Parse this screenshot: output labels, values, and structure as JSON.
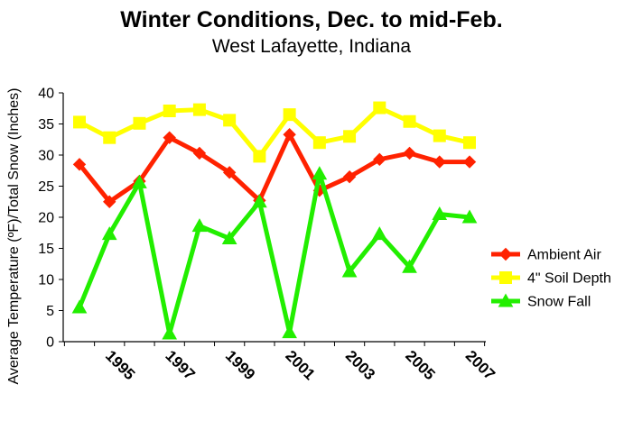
{
  "chart_data": {
    "type": "line",
    "title": "Winter Conditions, Dec. to mid-Feb.",
    "subtitle": "West Lafayette, Indiana",
    "ylabel": "Average Temperature (ºF)/Total Snow (Inches)",
    "xlabel": "",
    "ylim": [
      0,
      40
    ],
    "yticks": [
      "0",
      "5",
      "10",
      "15",
      "20",
      "25",
      "30",
      "35",
      "40"
    ],
    "x": [
      1994,
      1995,
      1996,
      1997,
      1998,
      1999,
      2000,
      2001,
      2002,
      2003,
      2004,
      2005,
      2006,
      2007
    ],
    "xtick_labels": [
      "1995",
      "1997",
      "1999",
      "2001",
      "2003",
      "2005",
      "2007"
    ],
    "grid": false,
    "legend_position": "right",
    "series": [
      {
        "name": "Ambient Air",
        "color": "#ff2200",
        "marker": "diamond",
        "values": [
          28.5,
          22.5,
          25.8,
          32.8,
          30.3,
          27.2,
          22.7,
          33.3,
          24.3,
          26.5,
          29.3,
          30.3,
          28.9,
          28.9
        ]
      },
      {
        "name": "4\" Soil Depth",
        "color": "#ffff00",
        "marker": "square",
        "values": [
          35.3,
          32.8,
          35.1,
          37.1,
          37.3,
          35.6,
          29.8,
          36.5,
          32.0,
          33.0,
          37.6,
          35.4,
          33.1,
          32.0
        ]
      },
      {
        "name": "Snow Fall",
        "color": "#22ee00",
        "marker": "triangle",
        "values": [
          5.5,
          17.3,
          25.6,
          1.3,
          18.6,
          16.6,
          22.5,
          1.5,
          27.0,
          11.3,
          17.3,
          12.0,
          20.5,
          20.0
        ]
      }
    ]
  }
}
